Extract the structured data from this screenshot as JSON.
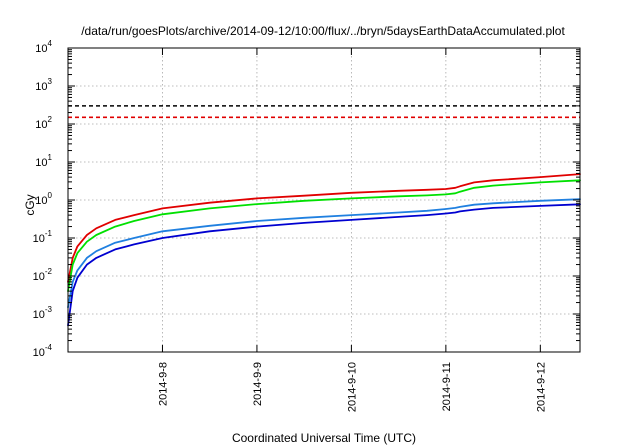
{
  "chart_data": {
    "type": "line",
    "title": "/data/run/goesPlots/archive/2014-09-12/10:00/flux/../bryn/5daysEarthDataAccumulated.plot",
    "xlabel": "Coordinated Universal Time (UTC)",
    "ylabel": "cGy",
    "yscale": "log",
    "ylim": [
      0.0001,
      10000
    ],
    "y_ticks": [
      {
        "value": 0.0001,
        "base": "10",
        "exp": "-4"
      },
      {
        "value": 0.001,
        "base": "10",
        "exp": "-3"
      },
      {
        "value": 0.01,
        "base": "10",
        "exp": "-2"
      },
      {
        "value": 0.1,
        "base": "10",
        "exp": "-1"
      },
      {
        "value": 1,
        "base": "10",
        "exp": "0"
      },
      {
        "value": 10,
        "base": "10",
        "exp": "1"
      },
      {
        "value": 100,
        "base": "10",
        "exp": "2"
      },
      {
        "value": 1000,
        "base": "10",
        "exp": "3"
      },
      {
        "value": 10000,
        "base": "10",
        "exp": "4"
      }
    ],
    "xlim": [
      0,
      5.42
    ],
    "x_ticks": [
      {
        "value": 1,
        "label": "2014-9-8"
      },
      {
        "value": 2,
        "label": "2014-9-9"
      },
      {
        "value": 3,
        "label": "2014-9-10"
      },
      {
        "value": 4,
        "label": "2014-9-11"
      },
      {
        "value": 5,
        "label": "2014-9-12"
      }
    ],
    "grid": true,
    "legend": "none",
    "reference_lines": [
      {
        "value": 300,
        "color": "#000000",
        "style": "dashed"
      },
      {
        "value": 150,
        "color": "#e00000",
        "style": "dashed"
      }
    ],
    "series": [
      {
        "color": "#e00000",
        "x": [
          0.0,
          0.05,
          0.1,
          0.2,
          0.3,
          0.5,
          0.7,
          1.0,
          1.5,
          2.0,
          2.5,
          3.0,
          3.5,
          3.8,
          4.0,
          4.1,
          4.15,
          4.3,
          4.5,
          5.0,
          5.42
        ],
        "y": [
          0.007,
          0.03,
          0.06,
          0.12,
          0.18,
          0.3,
          0.4,
          0.6,
          0.85,
          1.1,
          1.3,
          1.55,
          1.75,
          1.85,
          1.95,
          2.1,
          2.3,
          2.9,
          3.3,
          4.0,
          4.8
        ]
      },
      {
        "color": "#00e000",
        "x": [
          0.0,
          0.05,
          0.1,
          0.2,
          0.3,
          0.5,
          0.7,
          1.0,
          1.5,
          2.0,
          2.5,
          3.0,
          3.5,
          3.8,
          4.0,
          4.1,
          4.15,
          4.3,
          4.5,
          5.0,
          5.42
        ],
        "y": [
          0.004,
          0.02,
          0.04,
          0.08,
          0.12,
          0.2,
          0.28,
          0.42,
          0.6,
          0.78,
          0.95,
          1.1,
          1.25,
          1.32,
          1.4,
          1.5,
          1.65,
          2.1,
          2.4,
          2.9,
          3.3
        ]
      },
      {
        "color": "#2080e0",
        "x": [
          0.0,
          0.05,
          0.1,
          0.2,
          0.3,
          0.5,
          0.7,
          1.0,
          1.5,
          2.0,
          2.5,
          3.0,
          3.5,
          3.8,
          4.0,
          4.1,
          4.15,
          4.3,
          4.5,
          5.0,
          5.42
        ],
        "y": [
          0.0015,
          0.007,
          0.014,
          0.03,
          0.045,
          0.075,
          0.1,
          0.15,
          0.21,
          0.28,
          0.34,
          0.4,
          0.47,
          0.52,
          0.58,
          0.62,
          0.66,
          0.75,
          0.82,
          0.95,
          1.05
        ]
      },
      {
        "color": "#0000d0",
        "x": [
          0.0,
          0.05,
          0.1,
          0.2,
          0.3,
          0.5,
          0.7,
          1.0,
          1.5,
          2.0,
          2.5,
          3.0,
          3.5,
          3.8,
          4.0,
          4.1,
          4.15,
          4.3,
          4.5,
          5.0,
          5.42
        ],
        "y": [
          0.0005,
          0.004,
          0.009,
          0.02,
          0.03,
          0.05,
          0.068,
          0.1,
          0.15,
          0.2,
          0.25,
          0.3,
          0.36,
          0.4,
          0.44,
          0.47,
          0.5,
          0.56,
          0.62,
          0.7,
          0.77
        ]
      }
    ]
  }
}
